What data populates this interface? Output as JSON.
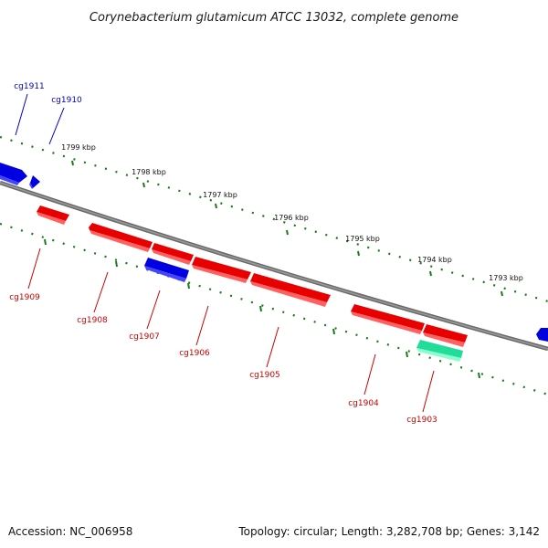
{
  "title": "Corynebacterium glutamicum ATCC 13032, complete genome",
  "footer": {
    "accession": "Accession: NC_006958",
    "topology": "Topology: circular; Length: 3,282,708 bp; Genes: 3,142"
  },
  "colors": {
    "forward_gene": "#e80000",
    "reverse_gene": "#0000e0",
    "rna_gene": "#22dd99",
    "tick_mark": "#1a7a1a",
    "backbone": "#7a7a7a",
    "forward_label": "#cc0000",
    "reverse_label": "#0000cc"
  },
  "scale_labels": [
    "1799 kbp",
    "1798 kbp",
    "1797 kbp",
    "1796 kbp",
    "1795 kbp",
    "1794 kbp",
    "1793 kbp"
  ],
  "genes": {
    "cg1911": "cg1911",
    "cg1910": "cg1910",
    "cg1909": "cg1909",
    "cg1908": "cg1908",
    "cg1907": "cg1907",
    "cg1906": "cg1906",
    "cg1905": "cg1905",
    "cg1904": "cg1904",
    "cg1903": "cg1903"
  }
}
